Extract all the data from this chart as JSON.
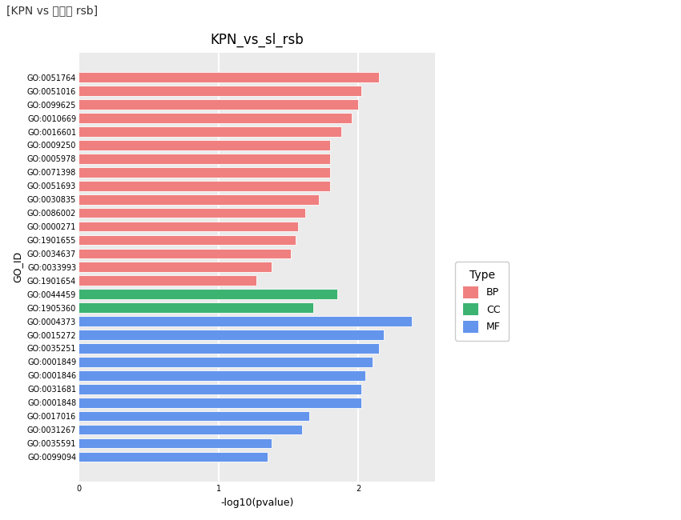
{
  "title": "KPN_vs_sl_rsb",
  "super_title": "[KPN vs 계통축 rsb]",
  "xlabel": "-log10(pvalue)",
  "ylabel": "GO_ID",
  "go_ids": [
    "GO:0051764",
    "GO:0051016",
    "GO:0099625",
    "GO:0010669",
    "GO:0016601",
    "GO:0009250",
    "GO:0005978",
    "GO:0071398",
    "GO:0051693",
    "GO:0030835",
    "GO:0086002",
    "GO:0000271",
    "GO:1901655",
    "GO:0034637",
    "GO:0033993",
    "GO:1901654",
    "GO:0044459",
    "GO:1905360",
    "GO:0004373",
    "GO:0015272",
    "GO:0035251",
    "GO:0001849",
    "GO:0001846",
    "GO:0031681",
    "GO:0001848",
    "GO:0017016",
    "GO:0031267",
    "GO:0035591",
    "GO:0099094"
  ],
  "values": [
    2.15,
    2.02,
    2.0,
    1.95,
    1.88,
    1.8,
    1.8,
    1.8,
    1.8,
    1.72,
    1.62,
    1.57,
    1.55,
    1.52,
    1.38,
    1.27,
    1.85,
    1.68,
    2.38,
    2.18,
    2.15,
    2.1,
    2.05,
    2.02,
    2.02,
    1.65,
    1.6,
    1.38,
    1.35
  ],
  "types": [
    "BP",
    "BP",
    "BP",
    "BP",
    "BP",
    "BP",
    "BP",
    "BP",
    "BP",
    "BP",
    "BP",
    "BP",
    "BP",
    "BP",
    "BP",
    "BP",
    "CC",
    "CC",
    "MF",
    "MF",
    "MF",
    "MF",
    "MF",
    "MF",
    "MF",
    "MF",
    "MF",
    "MF",
    "MF"
  ],
  "type_colors": {
    "BP": "#F08080",
    "CC": "#3CB371",
    "MF": "#6495ED"
  },
  "xlim": [
    0,
    2.55
  ],
  "xticks": [
    0,
    1,
    2
  ],
  "background_color": "#FFFFFF",
  "panel_color": "#EBEBEB",
  "grid_color": "#FFFFFF",
  "bar_height": 0.75,
  "title_fontsize": 12,
  "axis_label_fontsize": 9,
  "tick_fontsize": 7,
  "legend_fontsize": 9,
  "legend_title_fontsize": 10
}
